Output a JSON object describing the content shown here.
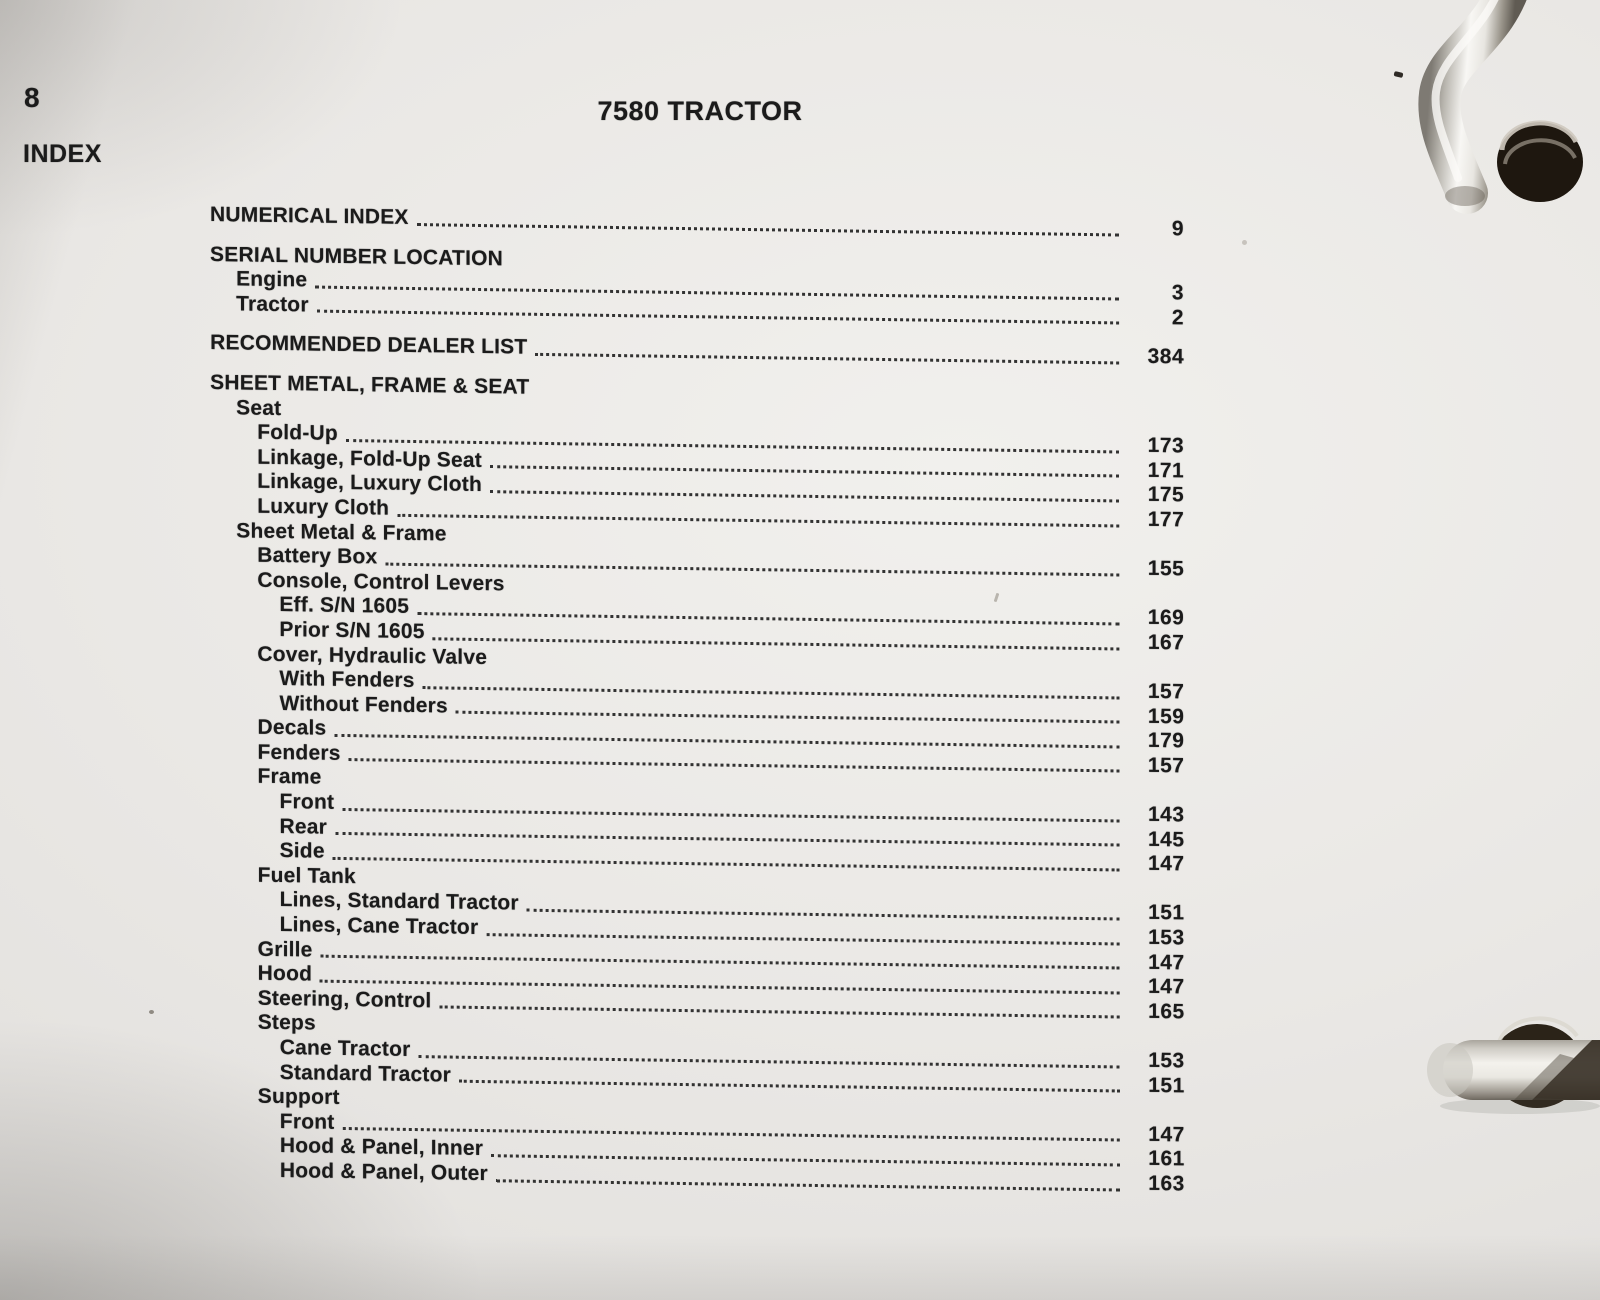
{
  "page": {
    "page_number": "8",
    "page_label": "INDEX",
    "title": "7580 TRACTOR"
  },
  "colors": {
    "paper": "#eae8e5",
    "ink": "#1b1b1b",
    "binder_ring_chrome": "#f1efe9",
    "binder_hole_dark": "#241c12"
  },
  "icons": {
    "binder_ring_top": "binder-ring-icon",
    "binder_ring_middle": "binder-ring-icon"
  },
  "index": {
    "entries": [
      {
        "label": "NUMERICAL INDEX",
        "page": "9",
        "level": 0,
        "space_before": false
      },
      {
        "label": "SERIAL NUMBER LOCATION",
        "page": null,
        "level": 0,
        "space_before": true
      },
      {
        "label": "Engine",
        "page": "3",
        "level": 1,
        "space_before": false
      },
      {
        "label": "Tractor",
        "page": "2",
        "level": 1,
        "space_before": false
      },
      {
        "label": "RECOMMENDED DEALER LIST",
        "page": "384",
        "level": 0,
        "space_before": true
      },
      {
        "label": "SHEET METAL, FRAME & SEAT",
        "page": null,
        "level": 0,
        "space_before": true
      },
      {
        "label": "Seat",
        "page": null,
        "level": 1,
        "space_before": false
      },
      {
        "label": "Fold-Up",
        "page": "173",
        "level": 2,
        "space_before": false
      },
      {
        "label": "Linkage, Fold-Up Seat",
        "page": "171",
        "level": 2,
        "space_before": false
      },
      {
        "label": "Linkage, Luxury Cloth",
        "page": "175",
        "level": 2,
        "space_before": false
      },
      {
        "label": "Luxury Cloth",
        "page": "177",
        "level": 2,
        "space_before": false
      },
      {
        "label": "Sheet Metal & Frame",
        "page": null,
        "level": 1,
        "space_before": false
      },
      {
        "label": "Battery Box",
        "page": "155",
        "level": 2,
        "space_before": false
      },
      {
        "label": "Console, Control Levers",
        "page": null,
        "level": 2,
        "space_before": false
      },
      {
        "label": "Eff. S/N 1605",
        "page": "169",
        "level": 3,
        "space_before": false
      },
      {
        "label": "Prior S/N 1605",
        "page": "167",
        "level": 3,
        "space_before": false
      },
      {
        "label": "Cover, Hydraulic Valve",
        "page": null,
        "level": 2,
        "space_before": false
      },
      {
        "label": "With Fenders",
        "page": "157",
        "level": 3,
        "space_before": false
      },
      {
        "label": "Without Fenders",
        "page": "159",
        "level": 3,
        "space_before": false
      },
      {
        "label": "Decals",
        "page": "179",
        "level": 2,
        "space_before": false
      },
      {
        "label": "Fenders",
        "page": "157",
        "level": 2,
        "space_before": false
      },
      {
        "label": "Frame",
        "page": null,
        "level": 2,
        "space_before": false
      },
      {
        "label": "Front",
        "page": "143",
        "level": 3,
        "space_before": false
      },
      {
        "label": "Rear",
        "page": "145",
        "level": 3,
        "space_before": false
      },
      {
        "label": "Side",
        "page": "147",
        "level": 3,
        "space_before": false
      },
      {
        "label": "Fuel Tank",
        "page": null,
        "level": 2,
        "space_before": false
      },
      {
        "label": "Lines, Standard Tractor",
        "page": "151",
        "level": 3,
        "space_before": false
      },
      {
        "label": "Lines, Cane Tractor",
        "page": "153",
        "level": 3,
        "space_before": false
      },
      {
        "label": "Grille",
        "page": "147",
        "level": 2,
        "space_before": false
      },
      {
        "label": "Hood",
        "page": "147",
        "level": 2,
        "space_before": false
      },
      {
        "label": "Steering, Control",
        "page": "165",
        "level": 2,
        "space_before": false
      },
      {
        "label": "Steps",
        "page": null,
        "level": 2,
        "space_before": false
      },
      {
        "label": "Cane Tractor",
        "page": "153",
        "level": 3,
        "space_before": false
      },
      {
        "label": "Standard Tractor",
        "page": "151",
        "level": 3,
        "space_before": false
      },
      {
        "label": "Support",
        "page": null,
        "level": 2,
        "space_before": false
      },
      {
        "label": "Front",
        "page": "147",
        "level": 3,
        "space_before": false
      },
      {
        "label": "Hood & Panel, Inner",
        "page": "161",
        "level": 3,
        "space_before": false
      },
      {
        "label": "Hood & Panel, Outer",
        "page": "163",
        "level": 3,
        "space_before": false
      }
    ]
  }
}
